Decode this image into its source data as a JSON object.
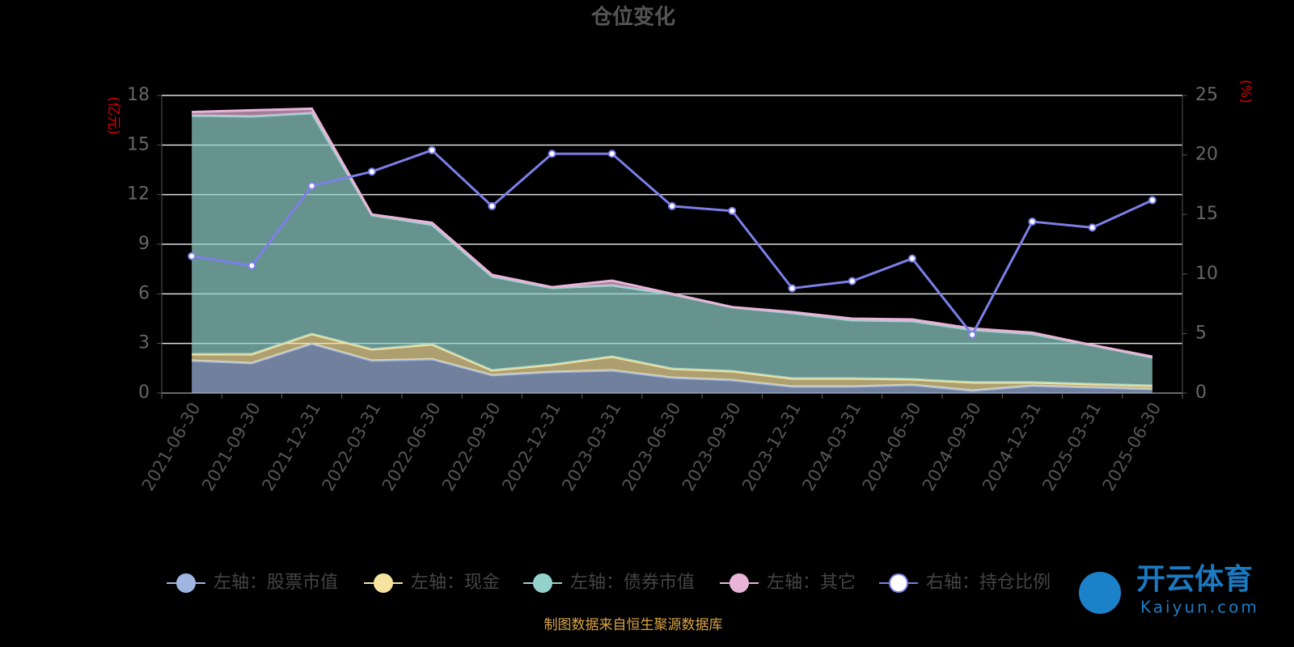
{
  "chart_data": {
    "type": "area",
    "title": "仓位变化",
    "y_label": "(亿元)",
    "y2_label": "(%)",
    "categories": [
      "2021-06-30",
      "2021-09-30",
      "2021-12-31",
      "2022-03-31",
      "2022-06-30",
      "2022-09-30",
      "2022-12-31",
      "2023-03-31",
      "2023-06-30",
      "2023-09-30",
      "2023-12-31",
      "2024-03-31",
      "2024-06-30",
      "2024-09-30",
      "2024-12-31",
      "2025-03-31",
      "2025-06-30"
    ],
    "series": [
      {
        "name": "左轴：股票市值",
        "type": "area",
        "color": "#9fb6e0",
        "values": [
          1.96,
          1.81,
          2.98,
          1.96,
          2.05,
          1.08,
          1.27,
          1.37,
          0.93,
          0.78,
          0.39,
          0.39,
          0.49,
          0.15,
          0.44,
          0.34,
          0.24
        ]
      },
      {
        "name": "左轴：现金",
        "type": "area",
        "color": "#f7e3a0",
        "values": [
          0.39,
          0.54,
          0.59,
          0.68,
          0.89,
          0.29,
          0.44,
          0.83,
          0.54,
          0.54,
          0.49,
          0.49,
          0.34,
          0.49,
          0.2,
          0.2,
          0.2
        ]
      },
      {
        "name": "左轴：债券市值",
        "type": "area",
        "color": "#93d2cc",
        "values": [
          14.43,
          14.38,
          13.36,
          8.12,
          7.24,
          5.68,
          4.65,
          4.31,
          4.5,
          3.87,
          3.96,
          3.52,
          3.52,
          3.18,
          2.93,
          2.35,
          1.71
        ]
      },
      {
        "name": "左轴：其它",
        "type": "area",
        "color": "#e8b4d8",
        "values": [
          0.22,
          0.37,
          0.27,
          0.04,
          0.12,
          0.1,
          0.04,
          0.29,
          0.03,
          0.01,
          0.06,
          0.1,
          0.1,
          0.08,
          0.08,
          0.01,
          0.05
        ]
      },
      {
        "name": "右轴：持仓比例",
        "type": "line",
        "axis": "y2",
        "color": "#7b7fe8",
        "values": [
          11.5,
          10.7,
          17.4,
          18.6,
          20.4,
          15.7,
          20.1,
          20.1,
          15.7,
          15.3,
          8.8,
          9.4,
          11.3,
          4.9,
          14.4,
          13.9,
          16.2
        ]
      }
    ],
    "ylim": [
      0,
      18
    ],
    "yticks": [
      0,
      3,
      6,
      9,
      12,
      15,
      18
    ],
    "y2lim": [
      0,
      25
    ],
    "y2ticks": [
      0,
      5,
      10,
      15,
      20,
      25
    ],
    "grid": true,
    "legend": "bottom",
    "footer": "制图数据来自恒生聚源数据库",
    "watermark": {
      "text": "开云体育",
      "url": "Kaiyun.com"
    }
  }
}
